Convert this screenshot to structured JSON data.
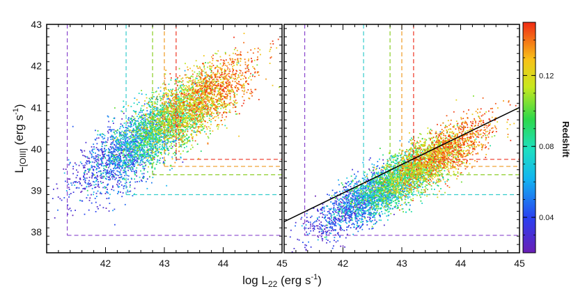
{
  "chart_data": {
    "type": "scatter",
    "panels": [
      {
        "name": "left",
        "description": "all sources",
        "fit_line": null
      },
      {
        "name": "right",
        "description": "subsample with linear fit",
        "fit_line": {
          "x": [
            41.0,
            45.0
          ],
          "y": [
            38.25,
            41.0
          ]
        }
      }
    ],
    "xlabel": {
      "main": "log L",
      "sub": "22",
      "units": " (erg s",
      "sup": "-1",
      "close": ")"
    },
    "ylabel": {
      "main": "L",
      "sub": "[OIII]",
      "units": " (erg s",
      "sup": "-1",
      "close": ")"
    },
    "xlim": [
      41.0,
      45.0
    ],
    "ylim": [
      37.5,
      43.0
    ],
    "xticks": [
      "42",
      "43",
      "44",
      "45"
    ],
    "yticks": [
      "38",
      "39",
      "40",
      "41",
      "42",
      "43"
    ],
    "colorbar": {
      "label": "Redshift",
      "range": [
        0.02,
        0.15
      ],
      "ticks": [
        "0.04",
        "0.08",
        "0.12"
      ]
    },
    "selection_limits": [
      {
        "z": 0.025,
        "color": "#8844cc",
        "x_min": 41.35,
        "y_min": 37.92
      },
      {
        "z": 0.05,
        "color": "#33cccc",
        "x_min": 42.35,
        "y_min": 38.9
      },
      {
        "z": 0.09,
        "color": "#88cc22",
        "x_min": 42.8,
        "y_min": 39.38
      },
      {
        "z": 0.11,
        "color": "#ee9922",
        "x_min": 43.0,
        "y_min": 39.58
      },
      {
        "z": 0.13,
        "color": "#ee3322",
        "x_min": 43.2,
        "y_min": 39.75
      }
    ]
  }
}
